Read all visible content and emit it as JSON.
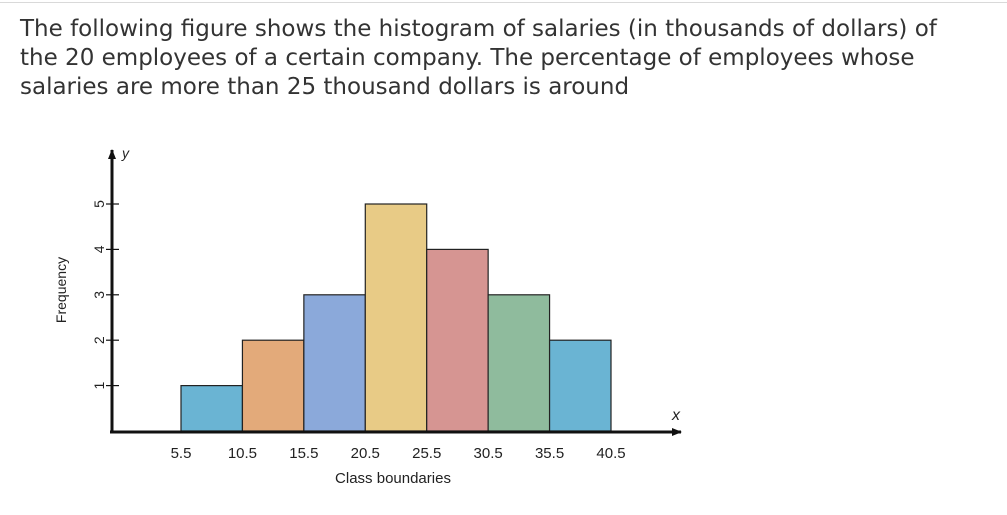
{
  "question": {
    "text": "The following figure shows the histogram of salaries (in thousands of dollars) of the 20 employees of a certain company. The percentage of employees whose salaries are more than 25 thousand dollars is around"
  },
  "chart_data": {
    "type": "bar",
    "title": "",
    "xlabel": "Class boundaries",
    "ylabel": "Frequency",
    "x_axis_letter": "x",
    "y_axis_letter": "y",
    "boundaries": [
      5.5,
      10.5,
      15.5,
      20.5,
      25.5,
      30.5,
      35.5,
      40.5
    ],
    "boundary_labels": [
      "5.5",
      "10.5",
      "15.5",
      "20.5",
      "25.5",
      "30.5",
      "35.5",
      "40.5"
    ],
    "categories": [
      "5.5–10.5",
      "10.5–15.5",
      "15.5–20.5",
      "20.5–25.5",
      "25.5–30.5",
      "30.5–35.5",
      "35.5–40.5"
    ],
    "values": [
      1,
      2,
      3,
      5,
      4,
      3,
      2
    ],
    "bar_colors": [
      "#6ab4d3",
      "#e3aa7a",
      "#8ba9da",
      "#e8cb86",
      "#d69592",
      "#8fbb9d",
      "#6ab4d3"
    ],
    "y_ticks": [
      1,
      2,
      3,
      4,
      5
    ],
    "ylim": [
      0,
      5
    ],
    "grid": false
  }
}
